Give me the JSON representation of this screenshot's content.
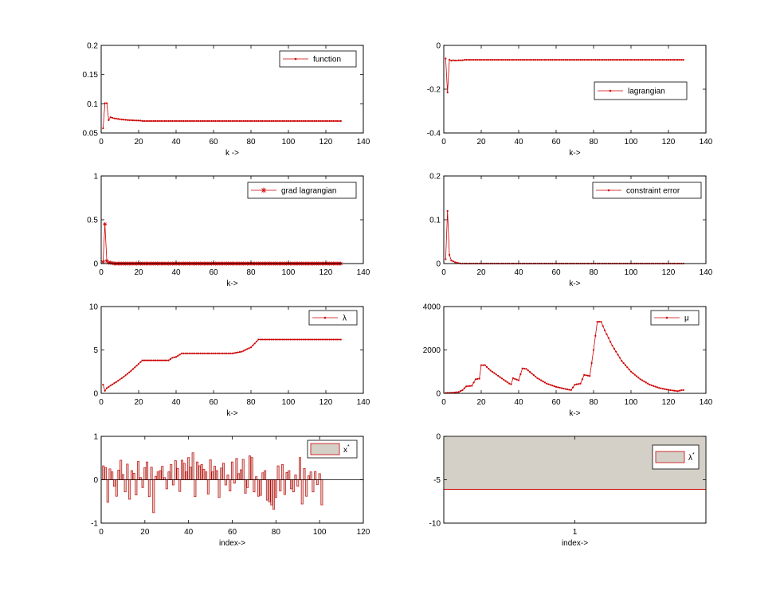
{
  "colors": {
    "line": "#cc0000",
    "fill": "#d4d0c8",
    "axis": "#000000"
  },
  "chart_data": [
    {
      "id": "function",
      "type": "line",
      "marker": "dot",
      "xlabel": "k ->",
      "xlim": [
        0,
        140
      ],
      "ylim": [
        0.05,
        0.2
      ],
      "xticks": [
        "0",
        "20",
        "40",
        "60",
        "80",
        "100",
        "120",
        "140"
      ],
      "yticks": [
        "0.05",
        "0.1",
        "0.15",
        "0.2"
      ],
      "legend": "function",
      "legend_position": "top-right",
      "x_range": [
        1,
        128
      ],
      "values": [
        0.058,
        0.101,
        0.101,
        0.072,
        0.077,
        0.076,
        0.075,
        0.0745,
        0.074,
        0.0735,
        0.073,
        0.0728,
        0.0725,
        0.0722,
        0.072,
        0.0718,
        0.0716,
        0.0715,
        0.0714,
        0.0713,
        0.0712
      ],
      "tail_value": 0.0705
    },
    {
      "id": "lagrangian",
      "type": "line",
      "marker": "dot",
      "xlabel": "k->",
      "xlim": [
        0,
        140
      ],
      "ylim": [
        -0.4,
        0
      ],
      "xticks": [
        "0",
        "20",
        "40",
        "60",
        "80",
        "100",
        "120",
        "140"
      ],
      "yticks": [
        "-0.4",
        "-0.2",
        "0"
      ],
      "legend": "lagrangian",
      "legend_position": "right",
      "x_range": [
        1,
        128
      ],
      "values": [
        -0.06,
        -0.215,
        -0.065,
        -0.07,
        -0.068,
        -0.069,
        -0.069,
        -0.068,
        -0.068,
        -0.068
      ],
      "tail_value": -0.066
    },
    {
      "id": "grad_lagrangian",
      "type": "line",
      "marker": "star",
      "xlabel": "k->",
      "xlim": [
        0,
        140
      ],
      "ylim": [
        0,
        1
      ],
      "xticks": [
        "0",
        "20",
        "40",
        "60",
        "80",
        "100",
        "120",
        "140"
      ],
      "yticks": [
        "0",
        "0.5",
        "1"
      ],
      "legend": "grad lagrangian",
      "legend_position": "top-right",
      "x_range": [
        1,
        128
      ],
      "values": [
        0.02,
        0.45,
        0.03,
        0.01,
        0.01,
        0.005
      ],
      "tail_value": 0.0
    },
    {
      "id": "constraint_error",
      "type": "line",
      "marker": "dot",
      "xlabel": "k->",
      "xlim": [
        0,
        140
      ],
      "ylim": [
        0,
        0.2
      ],
      "xticks": [
        "0",
        "20",
        "40",
        "60",
        "80",
        "100",
        "120",
        "140"
      ],
      "yticks": [
        "0",
        "0.1",
        "0.2"
      ],
      "legend": "constraint error",
      "legend_position": "top-right",
      "x_range": [
        1,
        128
      ],
      "values": [
        0.01,
        0.12,
        0.02,
        0.007,
        0.005,
        0.003,
        0.002,
        0.001
      ],
      "tail_value": 0.0
    },
    {
      "id": "lambda",
      "type": "line",
      "marker": "dot",
      "xlabel": "k->",
      "xlim": [
        0,
        140
      ],
      "ylim": [
        0,
        10
      ],
      "xticks": [
        "0",
        "20",
        "40",
        "60",
        "80",
        "100",
        "120",
        "140"
      ],
      "yticks": [
        "0",
        "5",
        "10"
      ],
      "legend": "λ",
      "legend_position": "top-right",
      "points": [
        [
          1,
          1.0
        ],
        [
          2,
          0.3
        ],
        [
          3,
          0.6
        ],
        [
          5,
          0.9
        ],
        [
          8,
          1.3
        ],
        [
          12,
          1.9
        ],
        [
          16,
          2.6
        ],
        [
          20,
          3.4
        ],
        [
          22,
          3.8
        ],
        [
          36,
          3.8
        ],
        [
          38,
          4.1
        ],
        [
          40,
          4.2
        ],
        [
          43,
          4.6
        ],
        [
          70,
          4.6
        ],
        [
          75,
          4.8
        ],
        [
          80,
          5.3
        ],
        [
          84,
          6.2
        ],
        [
          128,
          6.2
        ]
      ]
    },
    {
      "id": "mu",
      "type": "line",
      "marker": "dot",
      "xlabel": "k->",
      "xlim": [
        0,
        140
      ],
      "ylim": [
        0,
        4000
      ],
      "xticks": [
        "0",
        "20",
        "40",
        "60",
        "80",
        "100",
        "120",
        "140"
      ],
      "yticks": [
        "0",
        "2000",
        "4000"
      ],
      "legend": "μ",
      "legend_position": "top-right",
      "points": [
        [
          1,
          20
        ],
        [
          5,
          30
        ],
        [
          8,
          60
        ],
        [
          10,
          150
        ],
        [
          12,
          320
        ],
        [
          15,
          350
        ],
        [
          17,
          650
        ],
        [
          19,
          680
        ],
        [
          20,
          1300
        ],
        [
          22,
          1300
        ],
        [
          25,
          1050
        ],
        [
          30,
          750
        ],
        [
          35,
          450
        ],
        [
          36,
          420
        ],
        [
          37,
          700
        ],
        [
          40,
          600
        ],
        [
          42,
          1150
        ],
        [
          44,
          1130
        ],
        [
          50,
          700
        ],
        [
          55,
          450
        ],
        [
          60,
          300
        ],
        [
          65,
          200
        ],
        [
          68,
          150
        ],
        [
          70,
          400
        ],
        [
          73,
          450
        ],
        [
          75,
          850
        ],
        [
          78,
          800
        ],
        [
          80,
          2000
        ],
        [
          82,
          3300
        ],
        [
          84,
          3300
        ],
        [
          86,
          2900
        ],
        [
          90,
          2200
        ],
        [
          95,
          1500
        ],
        [
          100,
          1000
        ],
        [
          105,
          650
        ],
        [
          110,
          400
        ],
        [
          115,
          250
        ],
        [
          120,
          160
        ],
        [
          125,
          100
        ],
        [
          127,
          150
        ],
        [
          128,
          150
        ]
      ]
    },
    {
      "id": "x_star",
      "type": "bar",
      "xlabel": "index->",
      "xlim": [
        0,
        120
      ],
      "ylim": [
        -1,
        1
      ],
      "xticks": [
        "0",
        "20",
        "40",
        "60",
        "80",
        "100",
        "120"
      ],
      "yticks": [
        "-1",
        "0",
        "1"
      ],
      "legend": "x*",
      "legend_position": "top-right",
      "values": [
        0.32,
        0.28,
        -0.52,
        0.25,
        0.18,
        -0.15,
        -0.38,
        0.22,
        0.45,
        0.12,
        -0.28,
        0.36,
        -0.45,
        0.21,
        0.15,
        -0.35,
        0.42,
        0.05,
        -0.18,
        0.28,
        0.41,
        -0.39,
        0.29,
        -0.76,
        0.08,
        0.18,
        0.21,
        0.31,
        0.05,
        -0.21,
        0.18,
        0.35,
        -0.12,
        0.44,
        0.26,
        -0.27,
        0.45,
        0.38,
        0.18,
        0.51,
        0.29,
        0.62,
        -0.39,
        0.41,
        0.32,
        0.35,
        0.24,
        0.18,
        -0.33,
        0.46,
        0.18,
        0.31,
        0.21,
        -0.41,
        0.27,
        0.38,
        -0.12,
        0.11,
        -0.26,
        0.41,
        -0.08,
        0.49,
        0.14,
        0.23,
        0.47,
        -0.31,
        -0.18,
        0.55,
        0.51,
        -0.28,
        0.07,
        -0.38,
        -0.36,
        0.16,
        0.21,
        -0.47,
        -0.51,
        -0.58,
        -0.68,
        -0.41,
        0.32,
        -0.26,
        0.35,
        -0.34,
        0.17,
        0.21,
        -0.21,
        -0.28,
        0.11,
        -0.15,
        0.51,
        -0.56,
        0.26,
        -0.38,
        0.09,
        0.18,
        -0.28,
        0.19,
        -0.11,
        0.14,
        -0.58
      ]
    },
    {
      "id": "lambda_star",
      "type": "bar",
      "xlabel": "index->",
      "xlim": [
        0.5,
        1.5
      ],
      "ylim": [
        -10,
        0
      ],
      "xticks": [
        "1"
      ],
      "yticks": [
        "-10",
        "-5",
        "0"
      ],
      "legend": "λ*",
      "legend_position": "right",
      "categories": [
        "1"
      ],
      "values": [
        -6.1
      ]
    }
  ]
}
